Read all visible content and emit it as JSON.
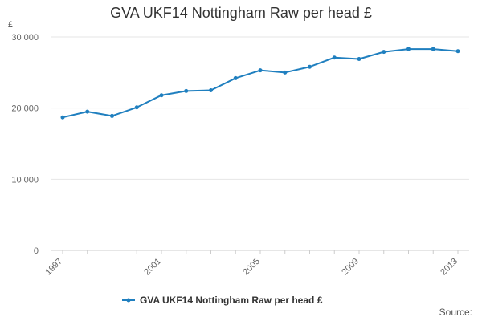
{
  "chart_data": {
    "type": "line",
    "title": "GVA UKF14 Nottingham Raw per head £",
    "y_unit": "£",
    "source_label": "Source:",
    "x": [
      1997,
      1998,
      1999,
      2000,
      2001,
      2002,
      2003,
      2004,
      2005,
      2006,
      2007,
      2008,
      2009,
      2010,
      2011,
      2012,
      2013
    ],
    "x_tick_labels": [
      "1997",
      "2001",
      "2005",
      "2009",
      "2013"
    ],
    "y_ticks": [
      0,
      10000,
      20000,
      30000
    ],
    "y_tick_labels": [
      "0",
      "10 000",
      "20 000",
      "30 000"
    ],
    "ylim": [
      0,
      30000
    ],
    "grid": true,
    "legend_position": "bottom-center",
    "series": [
      {
        "name": "GVA UKF14 Nottingham Raw per head £",
        "color": "#1f7fbf",
        "values": [
          18700,
          19500,
          18900,
          20100,
          21800,
          22400,
          22500,
          24200,
          25300,
          25000,
          25800,
          27100,
          26900,
          27900,
          28300,
          28300,
          28000
        ]
      }
    ]
  }
}
